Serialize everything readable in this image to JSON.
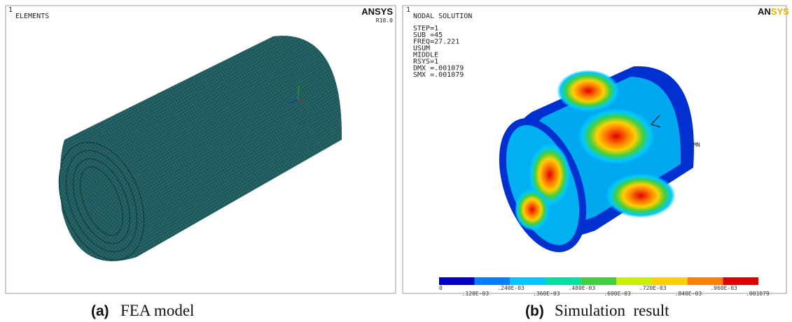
{
  "panel_a": {
    "corner_number": "1",
    "label": "ELEMENTS",
    "logo": "ANSYS",
    "version": "R18.0",
    "caption_tag": "(a)",
    "caption": "FEA model"
  },
  "panel_b": {
    "corner_number": "1",
    "logo_left": "AN",
    "logo_right": "SYS",
    "info": [
      "NODAL SOLUTION",
      "STEP=1",
      "SUB =45",
      "FREQ=27.221",
      "USUM",
      "MIDDLE",
      "RSYS=1",
      "DMX =.001079",
      "SMX =.001079"
    ],
    "marker": "MN",
    "legend": {
      "colors": [
        "#0000c8",
        "#0080ff",
        "#00c8ff",
        "#00e0a0",
        "#40d040",
        "#c8f000",
        "#ffd000",
        "#ff8000",
        "#e00000"
      ],
      "labels": [
        "0",
        ".120E-03",
        ".240E-03",
        ".360E-03",
        ".480E-03",
        ".600E-03",
        ".720E-03",
        ".840E-03",
        ".960E-03",
        ".001079"
      ]
    },
    "caption_tag": "(b)",
    "caption": "Simulation  result"
  }
}
